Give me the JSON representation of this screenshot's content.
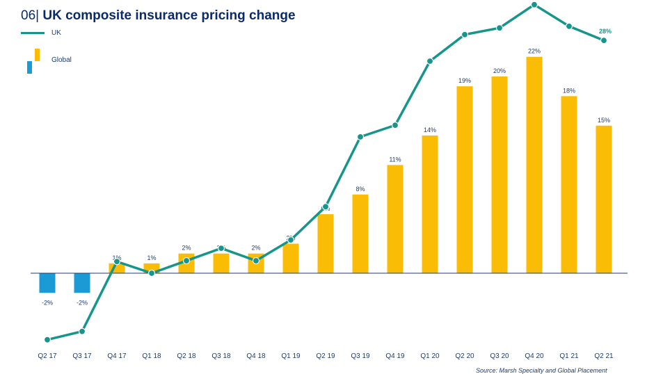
{
  "title_number": "06|",
  "title": "UK composite insurance pricing change",
  "source": "Source: Marsh Specialty and Global Placement",
  "chart_data": {
    "type": "bar",
    "title": "UK composite insurance pricing change",
    "categories": [
      "Q2 17",
      "Q3 17",
      "Q4 17",
      "Q1 18",
      "Q2 18",
      "Q3 18",
      "Q4 18",
      "Q1 19",
      "Q2 19",
      "Q3 19",
      "Q4 19",
      "Q1 20",
      "Q2 20",
      "Q3 20",
      "Q4 20",
      "Q1 21",
      "Q2 21"
    ],
    "legend_placement": "top-left",
    "grid": false,
    "series": [
      {
        "name": "UK",
        "type": "line",
        "color": "#16958a",
        "values": [
          -8,
          -7,
          1.4,
          0,
          1.5,
          3,
          1.5,
          4,
          8,
          16.4,
          17.8,
          25.5,
          28.7,
          29.5,
          32.3,
          29.7,
          28
        ],
        "labels": [
          "",
          "",
          "",
          "",
          "",
          "",
          "",
          "",
          "",
          "",
          "",
          "",
          "",
          "",
          "",
          "",
          "28%"
        ]
      },
      {
        "name": "Global",
        "type": "bar",
        "color": "#fbbc05",
        "negative_color": "#1b9ad6",
        "values": [
          -2,
          -2,
          1,
          1,
          2,
          2,
          2,
          3,
          6,
          8,
          11,
          14,
          19,
          20,
          22,
          18,
          15
        ],
        "labels": [
          "-2%",
          "-2%",
          "1%",
          "1%",
          "2%",
          "2%",
          "2%",
          "3%",
          "6%",
          "8%",
          "11%",
          "14%",
          "19%",
          "20%",
          "22%",
          "18%",
          "15%"
        ]
      }
    ]
  }
}
